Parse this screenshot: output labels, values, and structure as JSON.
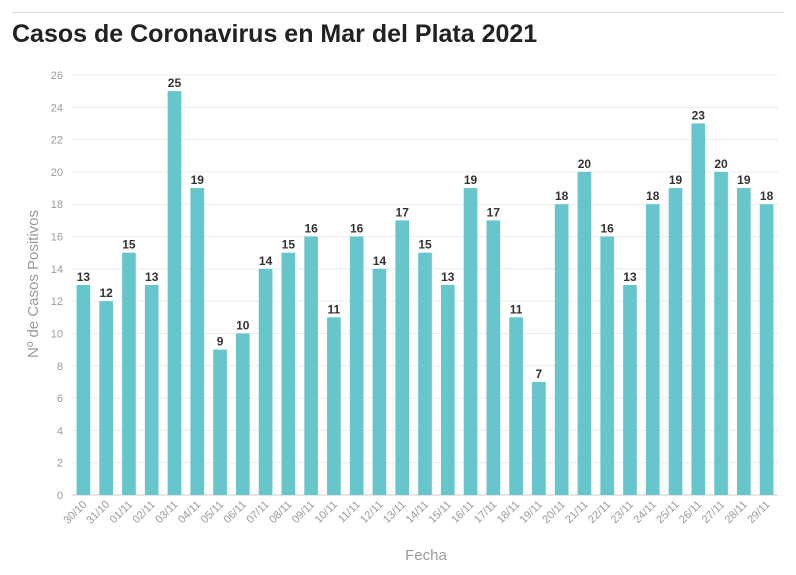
{
  "chart_data": {
    "type": "bar",
    "title": "Casos de Coronavirus en Mar del Plata 2021",
    "xlabel": "Fecha",
    "ylabel": "Nº de Casos Positivos",
    "ylim": [
      0,
      26
    ],
    "yticks": [
      0,
      2,
      4,
      6,
      8,
      10,
      12,
      14,
      16,
      18,
      20,
      22,
      24,
      26
    ],
    "grid": true,
    "bar_color": "#67c6cc",
    "categories": [
      "30/10",
      "31/10",
      "01/11",
      "02/11",
      "03/11",
      "04/11",
      "05/11",
      "06/11",
      "07/11",
      "08/11",
      "09/11",
      "10/11",
      "11/11",
      "12/11",
      "13/11",
      "14/11",
      "15/11",
      "16/11",
      "17/11",
      "18/11",
      "19/11",
      "20/11",
      "21/11",
      "22/11",
      "23/11",
      "24/11",
      "25/11",
      "26/11",
      "27/11",
      "28/11",
      "29/11"
    ],
    "values": [
      13,
      12,
      15,
      13,
      25,
      19,
      9,
      10,
      14,
      15,
      16,
      11,
      16,
      14,
      17,
      15,
      13,
      19,
      17,
      11,
      7,
      18,
      20,
      16,
      13,
      18,
      19,
      23,
      20,
      19,
      18
    ]
  }
}
